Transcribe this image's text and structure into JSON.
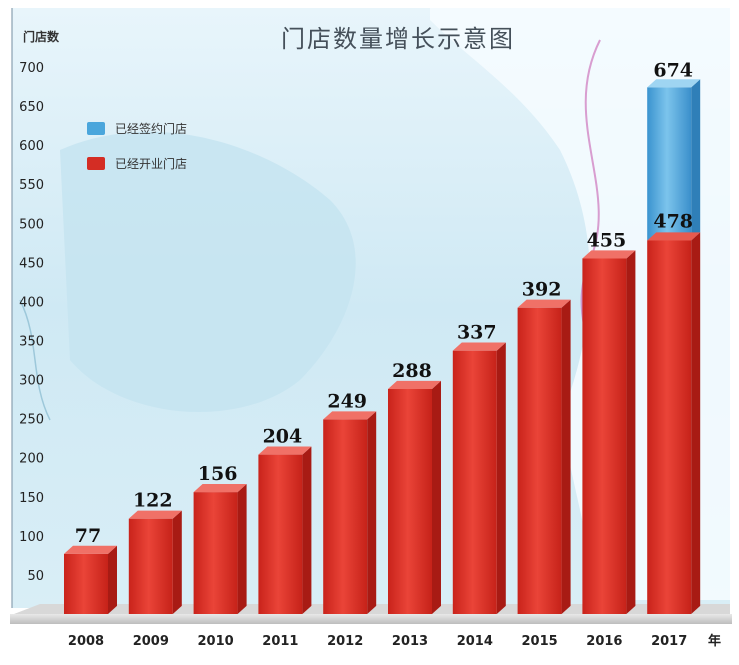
{
  "chart_data": {
    "type": "bar",
    "title": "门店数量增长示意图",
    "ylabel": "门店数",
    "xlabel": "年",
    "ylim": [
      0,
      700
    ],
    "yticks": [
      50,
      100,
      150,
      200,
      250,
      300,
      350,
      400,
      450,
      500,
      550,
      600,
      650,
      700
    ],
    "categories": [
      "2008",
      "2009",
      "2010",
      "2011",
      "2012",
      "2013",
      "2014",
      "2015",
      "2016",
      "2017"
    ],
    "series": [
      {
        "name": "已经开业门店",
        "color": "#d42d24",
        "values": [
          77,
          122,
          156,
          204,
          249,
          288,
          337,
          392,
          455,
          478
        ]
      },
      {
        "name": "已经签约门店",
        "color": "#4aa6dc",
        "values": [
          null,
          null,
          null,
          null,
          null,
          null,
          null,
          null,
          null,
          674
        ]
      }
    ],
    "legend_position": "top-left",
    "grid": false
  }
}
